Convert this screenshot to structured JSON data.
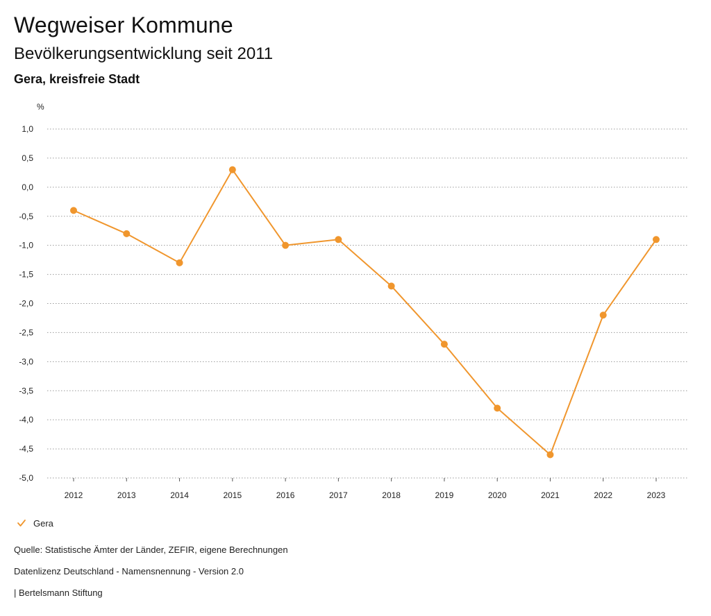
{
  "header": {
    "title": "Wegweiser Kommune",
    "subtitle": "Bevölkerungsentwicklung seit 2011",
    "region": "Gera, kreisfreie Stadt"
  },
  "colors": {
    "series": "#f0962d",
    "grid": "#9a9a9a",
    "text": "#222222"
  },
  "chart_data": {
    "type": "line",
    "unit_label": "%",
    "x": [
      "2012",
      "2013",
      "2014",
      "2015",
      "2016",
      "2017",
      "2018",
      "2019",
      "2020",
      "2021",
      "2022",
      "2023"
    ],
    "series": [
      {
        "name": "Gera",
        "values": [
          -0.4,
          -0.8,
          -1.3,
          0.3,
          -1.0,
          -0.9,
          -1.7,
          -2.7,
          -3.8,
          -4.6,
          -2.2,
          -0.9
        ]
      }
    ],
    "ylim": [
      -5.0,
      1.0
    ],
    "y_ticks": [
      1.0,
      0.5,
      0.0,
      -0.5,
      -1.0,
      -1.5,
      -2.0,
      -2.5,
      -3.0,
      -3.5,
      -4.0,
      -4.5,
      -5.0
    ],
    "y_tick_labels": [
      "1,0",
      "0,5",
      "0,0",
      "-0,5",
      "-1,0",
      "-1,5",
      "-2,0",
      "-2,5",
      "-3,0",
      "-3,5",
      "-4,0",
      "-4,5",
      "-5,0"
    ],
    "grid": true,
    "legend_position": "bottom-left"
  },
  "legend": {
    "label": "Gera"
  },
  "footer": {
    "source": "Quelle: Statistische Ämter der Länder, ZEFIR, eigene Berechnungen",
    "license": "Datenlizenz Deutschland - Namensnennung - Version 2.0",
    "publisher": "| Bertelsmann Stiftung"
  }
}
